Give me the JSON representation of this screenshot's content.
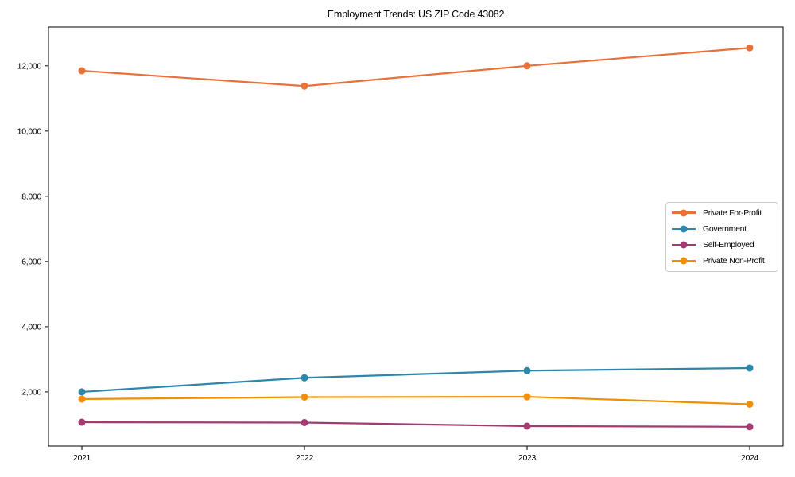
{
  "chart_data": {
    "type": "line",
    "title": "Employment Trends: US ZIP Code 43082",
    "xlabel": "",
    "ylabel": "",
    "x": [
      "2021",
      "2022",
      "2023",
      "2024"
    ],
    "series": [
      {
        "name": "Private For-Profit",
        "color": "#E8713A",
        "values": [
          11850,
          11380,
          12000,
          12550
        ]
      },
      {
        "name": "Government",
        "color": "#2E86AB",
        "values": [
          2000,
          2430,
          2650,
          2730
        ]
      },
      {
        "name": "Self-Employed",
        "color": "#A23B72",
        "values": [
          1070,
          1060,
          950,
          930
        ]
      },
      {
        "name": "Private Non-Profit",
        "color": "#F18F01",
        "values": [
          1780,
          1840,
          1850,
          1620
        ]
      }
    ],
    "ylim": [
      340,
      13190
    ],
    "yticks": [
      {
        "value": 2000,
        "label": "2,000"
      },
      {
        "value": 4000,
        "label": "4,000"
      },
      {
        "value": 6000,
        "label": "6,000"
      },
      {
        "value": 8000,
        "label": "8,000"
      },
      {
        "value": 10000,
        "label": "10,000"
      },
      {
        "value": 12000,
        "label": "12,000"
      }
    ],
    "grid": false,
    "marker": "circle",
    "legend_position": "right-center",
    "axis_color": "#000000",
    "tick_label_color": "#000000"
  }
}
